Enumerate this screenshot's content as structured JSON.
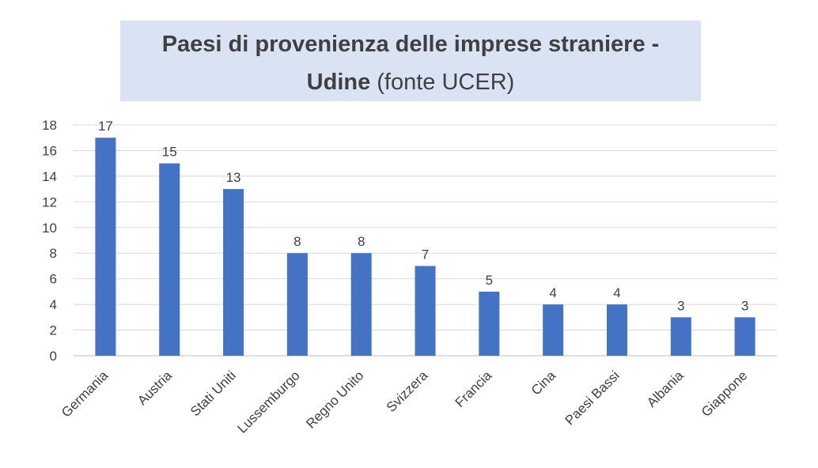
{
  "chart_data": {
    "type": "bar",
    "title_line1": "Paesi di provenienza delle imprese straniere -",
    "title_line2_bold": "Udine",
    "title_line2_normal": " (fonte UCER)",
    "categories": [
      "Germania",
      "Austria",
      "Stati Uniti",
      "Lussemburgo",
      "Regno Unito",
      "Svizzera",
      "Francia",
      "Cina",
      "Paesi Bassi",
      "Albania",
      "Giappone"
    ],
    "values": [
      17,
      15,
      13,
      8,
      8,
      7,
      5,
      4,
      4,
      3,
      3
    ],
    "ylim": [
      0,
      18
    ],
    "yticks": [
      0,
      2,
      4,
      6,
      8,
      10,
      12,
      14,
      16,
      18
    ],
    "grid": true,
    "legend": "none",
    "data_labels": true,
    "xlabel": "",
    "ylabel": ""
  },
  "colors": {
    "bar": "#4472c4",
    "grid": "#d9d9d9",
    "axis": "#bfbfbf",
    "text": "#404040",
    "title_background": "#d9e3f3"
  }
}
